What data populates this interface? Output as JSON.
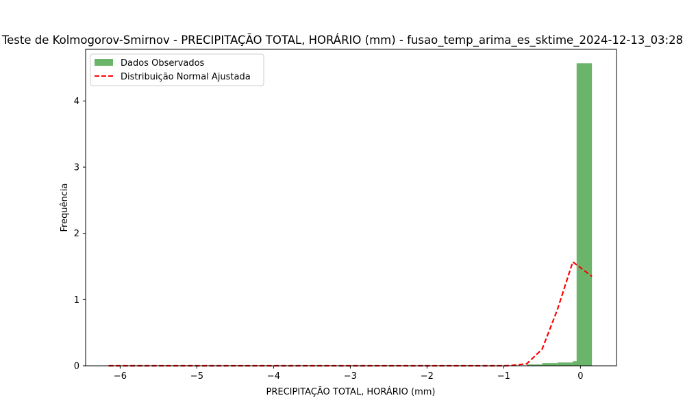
{
  "chart_data": {
    "type": "bar",
    "title": "Teste de Kolmogorov-Smirnov - PRECIPITAÇÃO TOTAL, HORÁRIO (mm) - fusao_temp_arima_es_sktime_2024-12-13_03:28",
    "xlabel": "PRECIPITAÇÃO TOTAL, HORÁRIO (mm)",
    "ylabel": "Frequência",
    "xlim": [
      -6.45,
      0.47
    ],
    "ylim": [
      0,
      4.78
    ],
    "xticks": [
      -6,
      -5,
      -4,
      -3,
      -2,
      -1,
      0
    ],
    "xtick_labels": [
      "−6",
      "−5",
      "−4",
      "−3",
      "−2",
      "−1",
      "0"
    ],
    "yticks": [
      0,
      1,
      2,
      3,
      4
    ],
    "ytick_labels": [
      "0",
      "1",
      "2",
      "3",
      "4"
    ],
    "grid": false,
    "legend_position": "top-left",
    "histogram": {
      "name": "Dados Observados",
      "color": "#6ab56a",
      "bin_width": 0.2,
      "bins": [
        {
          "start": -0.9,
          "value": 0.004
        },
        {
          "start": -0.7,
          "value": 0.02
        },
        {
          "start": -0.5,
          "value": 0.04
        },
        {
          "start": -0.3,
          "value": 0.05
        },
        {
          "start": -0.1,
          "value": 0.07
        },
        {
          "start": -0.05,
          "value": 4.57
        }
      ]
    },
    "fit_line": {
      "name": "Distribuição Normal Ajustada",
      "color": "#ff0000",
      "style": "dashed",
      "x": [
        -6.15,
        -5.8,
        -5.5,
        -5.0,
        -4.5,
        -4.0,
        -3.5,
        -3.0,
        -2.5,
        -2.0,
        -1.5,
        -1.2,
        -1.0,
        -0.9,
        -0.7,
        -0.5,
        -0.3,
        -0.1,
        0.15
      ],
      "y": [
        0,
        0,
        0,
        0,
        0,
        0,
        0,
        0,
        0,
        0,
        0,
        0,
        0,
        0.005,
        0.03,
        0.25,
        0.85,
        1.57,
        1.35
      ]
    }
  }
}
